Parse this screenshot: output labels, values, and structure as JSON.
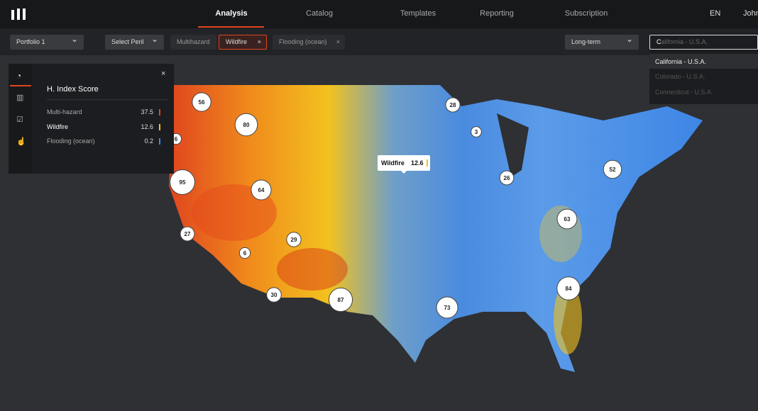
{
  "nav": {
    "items": [
      "Analysis",
      "Catalog",
      "Templates",
      "Reporting",
      "Subscription"
    ],
    "language": "EN",
    "user": "John"
  },
  "filters": {
    "portfolio": "Portfolio 1",
    "peril_select": "Select Peril",
    "perils": [
      "Multihazard",
      "Wildfire",
      "Flooding (ocean)"
    ],
    "horizon": "Long-term",
    "search_typed": "C",
    "search_hint": "alifornia - U.S.A.",
    "suggestions": [
      "California - U.S.A.",
      "Colorado - U.S.A.",
      "Connecticut - U.S.A."
    ]
  },
  "panel": {
    "title": "H. Index Score",
    "rows": [
      {
        "label": "Multi-hazard",
        "value": 37.5
      },
      {
        "label": "Wildfire",
        "value": 12.6
      },
      {
        "label": "Flooding (ocean)",
        "value": 0.2
      }
    ]
  },
  "tooltip": {
    "label": "Wildfire",
    "value": 12.6
  },
  "clusters": [
    56,
    80,
    6,
    95,
    64,
    27,
    29,
    6,
    30,
    87,
    28,
    3,
    26,
    52,
    63,
    84,
    73
  ]
}
